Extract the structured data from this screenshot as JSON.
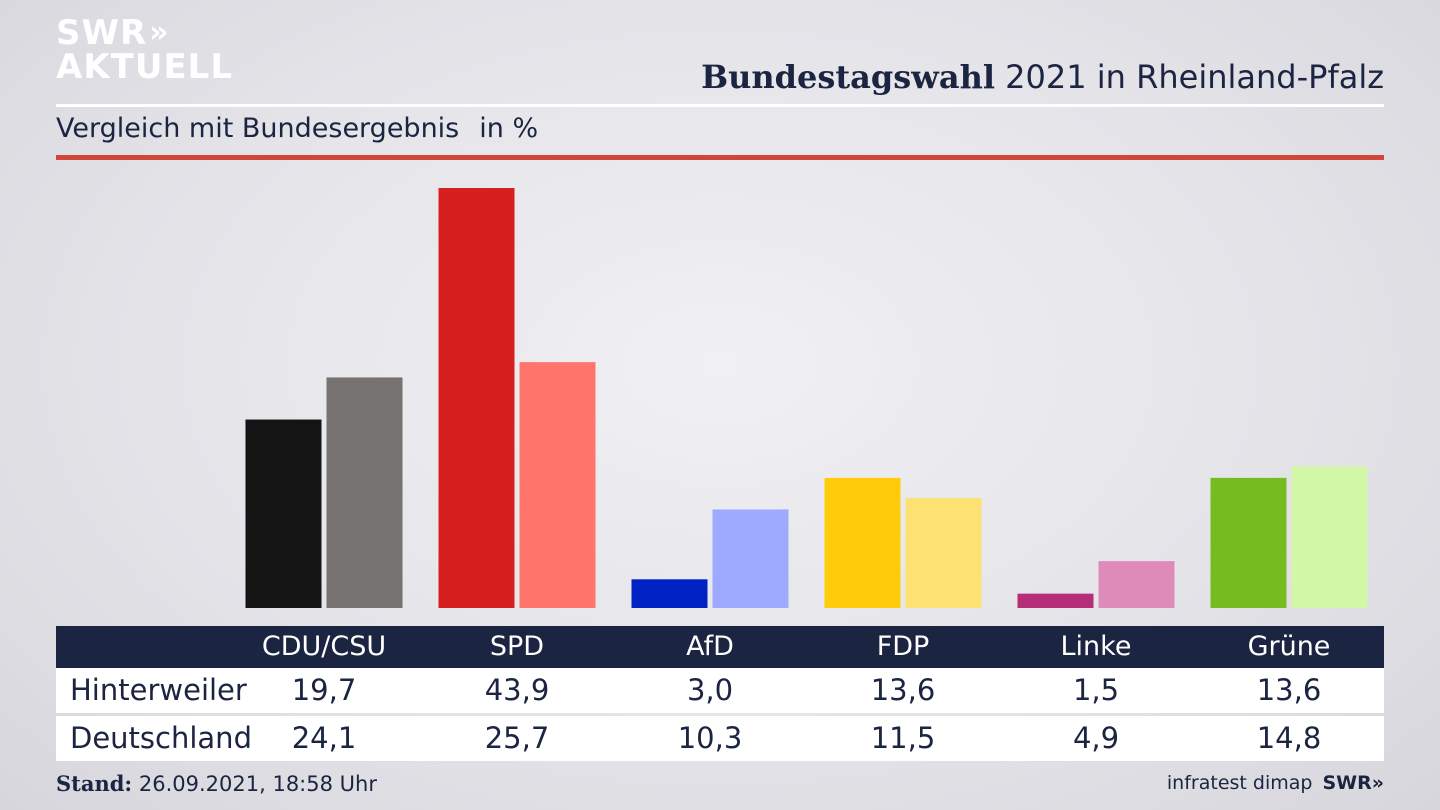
{
  "brand": {
    "logo_line1": "SWR",
    "logo_chevrons": "»",
    "logo_line2": "AKTUELL",
    "footer_logo": "SWR»"
  },
  "header": {
    "title_bold": "Bundestagswahl",
    "title_rest": "2021 in Rheinland-Pfalz"
  },
  "subtitle": {
    "text": "Vergleich mit Bundesergebnis",
    "unit": "in %"
  },
  "colors": {
    "header_bg": "#1b2440",
    "accent_rule": "#d2463a"
  },
  "chart_data": {
    "type": "bar",
    "categories": [
      "CDU/CSU",
      "SPD",
      "AfD",
      "FDP",
      "Linke",
      "Grüne"
    ],
    "series": [
      {
        "name": "Hinterweiler",
        "values": [
          19.7,
          43.9,
          3.0,
          13.6,
          1.5,
          13.6
        ],
        "colors": [
          "#141414",
          "#d61f1f",
          "#0022c4",
          "#ffcb0a",
          "#b62d78",
          "#76bc20"
        ]
      },
      {
        "name": "Deutschland",
        "values": [
          24.1,
          25.7,
          10.3,
          11.5,
          4.9,
          14.8
        ],
        "colors": [
          "#76726f",
          "#ff756b",
          "#9eaaff",
          "#fde172",
          "#df8bba",
          "#d2f7a6"
        ]
      }
    ],
    "ylim": [
      0,
      43.9
    ]
  },
  "table": {
    "headers": [
      "CDU/CSU",
      "SPD",
      "AfD",
      "FDP",
      "Linke",
      "Grüne"
    ],
    "rows": [
      {
        "label": "Hinterweiler",
        "values": [
          "19,7",
          "43,9",
          "3,0",
          "13,6",
          "1,5",
          "13,6"
        ]
      },
      {
        "label": "Deutschland",
        "values": [
          "24,1",
          "25,7",
          "10,3",
          "11,5",
          "4,9",
          "14,8"
        ]
      }
    ]
  },
  "footer": {
    "stand_label": "Stand:",
    "stand_value": "26.09.2021, 18:58 Uhr",
    "source": "infratest dimap"
  }
}
